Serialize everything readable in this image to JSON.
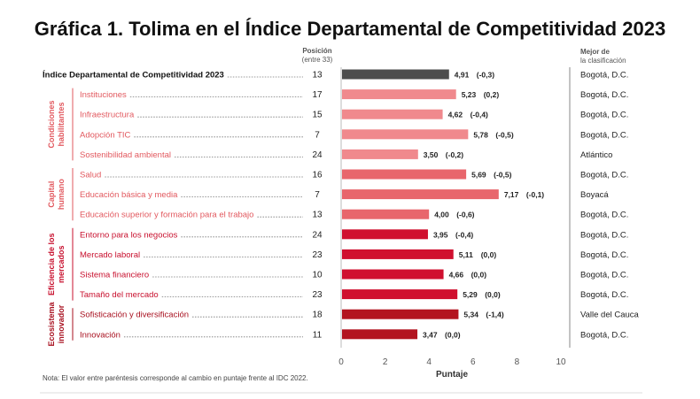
{
  "title": "Gráfica 1. Tolima en el Índice Departamental de Competitividad 2023",
  "header": {
    "position_l1": "Posición",
    "position_l2": "(entre 33)",
    "best_l1": "Mejor de",
    "best_l2": "la clasificación"
  },
  "note": "Nota: El valor entre paréntesis corresponde al cambio en puntaje frente al IDC 2022.",
  "chart_data": {
    "type": "bar",
    "orientation": "horizontal",
    "xlabel": "Puntaje",
    "xlim": [
      0,
      10
    ],
    "xticks": [
      "0",
      "2",
      "4",
      "6",
      "8",
      "10"
    ],
    "groups": [
      {
        "label_lines": [
          "Condiciones",
          "habilitantes"
        ],
        "color": "#e2595f"
      },
      {
        "label_lines": [
          "Capital",
          "humano"
        ],
        "color": "#e2595f"
      },
      {
        "label_lines": [
          "Eficiencia de los",
          "mercados"
        ],
        "color": "#c8102e"
      },
      {
        "label_lines": [
          "Ecosistema",
          "innovador"
        ],
        "color": "#a8101f"
      }
    ],
    "rows": [
      {
        "label": "Índice Departamental de Competitividad 2023",
        "position": "13",
        "value": 4.91,
        "value_label": "4,91",
        "change_label": "(-0,3)",
        "best": "Bogotá, D.C.",
        "color": "#4d4d4d",
        "group": -1
      },
      {
        "label": "Instituciones",
        "position": "17",
        "value": 5.23,
        "value_label": "5,23",
        "change_label": "(0,2)",
        "best": "Bogotá, D.C.",
        "color": "#f0898d",
        "group": 0
      },
      {
        "label": "Infraestructura",
        "position": "15",
        "value": 4.62,
        "value_label": "4,62",
        "change_label": "(-0,4)",
        "best": "Bogotá, D.C.",
        "color": "#f0898d",
        "group": 0
      },
      {
        "label": "Adopción TIC",
        "position": "7",
        "value": 5.78,
        "value_label": "5,78",
        "change_label": "(-0,5)",
        "best": "Bogotá, D.C.",
        "color": "#f0898d",
        "group": 0
      },
      {
        "label": "Sostenibilidad ambiental",
        "position": "24",
        "value": 3.5,
        "value_label": "3,50",
        "change_label": "(-0,2)",
        "best": "Atlántico",
        "color": "#f0898d",
        "group": 0
      },
      {
        "label": "Salud",
        "position": "16",
        "value": 5.69,
        "value_label": "5,69",
        "change_label": "(-0,5)",
        "best": "Bogotá, D.C.",
        "color": "#e8666c",
        "group": 1
      },
      {
        "label": "Educación básica y media",
        "position": "7",
        "value": 7.17,
        "value_label": "7,17",
        "change_label": "(-0,1)",
        "best": "Boyacá",
        "color": "#e8666c",
        "group": 1
      },
      {
        "label": "Educación superior y formación para el trabajo",
        "position": "13",
        "value": 4.0,
        "value_label": "4,00",
        "change_label": "(-0,6)",
        "best": "Bogotá, D.C.",
        "color": "#e8666c",
        "group": 1
      },
      {
        "label": "Entorno para los negocios",
        "position": "24",
        "value": 3.95,
        "value_label": "3,95",
        "change_label": "(-0,4)",
        "best": "Bogotá, D.C.",
        "color": "#d0102f",
        "group": 2
      },
      {
        "label": "Mercado laboral",
        "position": "23",
        "value": 5.11,
        "value_label": "5,11",
        "change_label": "(0,0)",
        "best": "Bogotá, D.C.",
        "color": "#d0102f",
        "group": 2
      },
      {
        "label": "Sistema financiero",
        "position": "10",
        "value": 4.66,
        "value_label": "4,66",
        "change_label": "(0,0)",
        "best": "Bogotá, D.C.",
        "color": "#d0102f",
        "group": 2
      },
      {
        "label": "Tamaño del mercado",
        "position": "23",
        "value": 5.29,
        "value_label": "5,29",
        "change_label": "(0,0)",
        "best": "Bogotá, D.C.",
        "color": "#d0102f",
        "group": 2
      },
      {
        "label": "Sofisticación y diversificación",
        "position": "18",
        "value": 5.34,
        "value_label": "5,34",
        "change_label": "(-1,4)",
        "best": "Valle del Cauca",
        "color": "#b3141f",
        "group": 3
      },
      {
        "label": "Innovación",
        "position": "11",
        "value": 3.47,
        "value_label": "3,47",
        "change_label": "(0,0)",
        "best": "Bogotá, D.C.",
        "color": "#b3141f",
        "group": 3
      }
    ]
  }
}
